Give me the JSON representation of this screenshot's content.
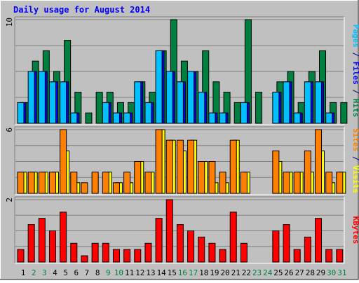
{
  "chart_data": [
    {
      "type": "bar",
      "title": "Daily usage for August 2014",
      "categories": [
        "1",
        "2",
        "3",
        "4",
        "5",
        "6",
        "7",
        "8",
        "9",
        "10",
        "11",
        "12",
        "13",
        "14",
        "15",
        "16",
        "17",
        "18",
        "19",
        "20",
        "21",
        "22",
        "23",
        "24",
        "25",
        "26",
        "27",
        "28",
        "29",
        "30",
        "31"
      ],
      "weekend_days": [
        "2",
        "3",
        "9",
        "10",
        "16",
        "17",
        "23",
        "24",
        "30",
        "31"
      ],
      "panels": [
        {
          "key": "hits_files_pages",
          "y_max_label": "10",
          "ylim": [
            0,
            10
          ],
          "axis_label_parts": [
            {
              "text": "Pages",
              "color": "#00c0ff"
            },
            {
              "text": " / ",
              "color": "#000080"
            },
            {
              "text": "Files",
              "color": "#0000ff"
            },
            {
              "text": " / ",
              "color": "#000080"
            },
            {
              "text": "Hits",
              "color": "#008040"
            }
          ],
          "series": [
            {
              "name": "Hits",
              "color": "#008040",
              "values": [
                2,
                6,
                7,
                5,
                8,
                3,
                1,
                3,
                3,
                2,
                2,
                4,
                3,
                7,
                10,
                6,
                5,
                7,
                4,
                3,
                2,
                10,
                3,
                0,
                4,
                5,
                2,
                5,
                7,
                2,
                2
              ]
            },
            {
              "name": "Files",
              "color": "#0000ff",
              "values": [
                2,
                5,
                5,
                4,
                4,
                1,
                0,
                0,
                2,
                1,
                1,
                4,
                2,
                7,
                5,
                4,
                5,
                3,
                1,
                1,
                0,
                2,
                0,
                0,
                3,
                4,
                1,
                4,
                4,
                1,
                0
              ]
            },
            {
              "name": "Pages",
              "color": "#00c0ff",
              "values": [
                2,
                5,
                5,
                4,
                4,
                1,
                0,
                0,
                2,
                1,
                1,
                4,
                2,
                7,
                5,
                4,
                5,
                3,
                1,
                1,
                0,
                2,
                0,
                0,
                3,
                4,
                1,
                4,
                4,
                1,
                0
              ]
            }
          ]
        },
        {
          "key": "visits_sites",
          "y_max_label": "6",
          "ylim": [
            0,
            6
          ],
          "axis_label_parts": [
            {
              "text": "Sites",
              "color": "#ff8000"
            },
            {
              "text": " / ",
              "color": "#000080"
            },
            {
              "text": "Visits",
              "color": "#ffff00"
            }
          ],
          "series": [
            {
              "name": "Visits",
              "color": "#ffff00",
              "values": [
                2,
                2,
                2,
                2,
                4,
                1,
                0,
                0,
                2,
                1,
                1,
                3,
                2,
                6,
                5,
                4,
                5,
                3,
                1,
                1,
                5,
                2,
                0,
                0,
                3,
                2,
                2,
                2,
                4,
                1,
                2
              ]
            },
            {
              "name": "Sites",
              "color": "#ff8000",
              "values": [
                2,
                2,
                2,
                2,
                6,
                2,
                1,
                2,
                2,
                1,
                2,
                3,
                2,
                6,
                5,
                5,
                5,
                3,
                3,
                2,
                5,
                2,
                0,
                0,
                4,
                2,
                2,
                4,
                6,
                2,
                2
              ]
            }
          ]
        },
        {
          "key": "kbytes",
          "y_max_label": "2",
          "ylim": [
            0,
            2
          ],
          "axis_label_parts": [
            {
              "text": "KBytes",
              "color": "#ff0000"
            }
          ],
          "series": [
            {
              "name": "KBytes",
              "color": "#ff0000",
              "values": [
                0.4,
                1.2,
                1.4,
                1.0,
                1.6,
                0.6,
                0.2,
                0.6,
                0.6,
                0.4,
                0.4,
                0.4,
                0.6,
                1.4,
                2.0,
                1.2,
                1.0,
                0.8,
                0.6,
                0.4,
                1.6,
                0.6,
                0.0,
                0.0,
                1.0,
                1.2,
                0.4,
                0.8,
                1.4,
                0.4,
                0.4
              ]
            }
          ]
        }
      ]
    }
  ],
  "colors": {
    "background": "#c0c0c0",
    "plot_background": "#c0c0c0",
    "title": "#0000ff",
    "weekday_label": "#000000",
    "weekend_label": "#008040",
    "gridline": "#808080"
  }
}
